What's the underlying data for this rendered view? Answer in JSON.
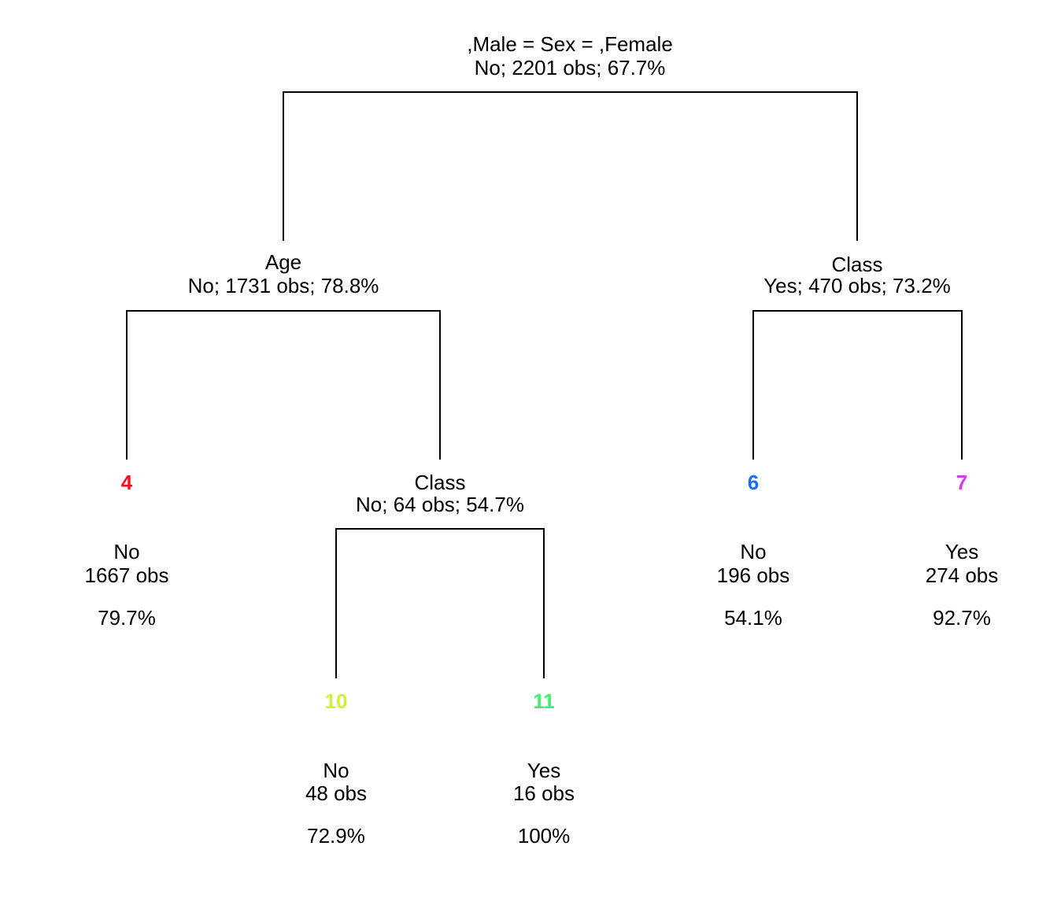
{
  "tree": {
    "internal_nodes": [
      {
        "id": "root",
        "split": ",Male = Sex = ,Female",
        "summary": "No; 2201 obs; 67.7%"
      },
      {
        "id": "n2",
        "split": "Age",
        "summary": "No; 1731 obs; 78.8%"
      },
      {
        "id": "n3",
        "split": "Class",
        "summary": "Yes; 470 obs; 73.2%"
      },
      {
        "id": "n5",
        "split": "Class",
        "summary": "No; 64 obs; 54.7%"
      }
    ],
    "leaves": [
      {
        "id": "leaf4",
        "number": "4",
        "color": "#ff0a1e",
        "class": "No",
        "obs": "1667 obs",
        "pct": "79.7%"
      },
      {
        "id": "leaf6",
        "number": "6",
        "color": "#1a6ef5",
        "class": "No",
        "obs": "196 obs",
        "pct": "54.1%"
      },
      {
        "id": "leaf7",
        "number": "7",
        "color": "#d23cf0",
        "class": "Yes",
        "obs": "274 obs",
        "pct": "92.7%"
      },
      {
        "id": "leaf10",
        "number": "10",
        "color": "#c8f53c",
        "class": "No",
        "obs": "48 obs",
        "pct": "72.9%"
      },
      {
        "id": "leaf11",
        "number": "11",
        "color": "#3cf06e",
        "class": "Yes",
        "obs": "16 obs",
        "pct": "100%"
      }
    ],
    "edges": [
      [
        "root",
        "n2"
      ],
      [
        "root",
        "n3"
      ],
      [
        "n2",
        "leaf4"
      ],
      [
        "n2",
        "n5"
      ],
      [
        "n3",
        "leaf6"
      ],
      [
        "n3",
        "leaf7"
      ],
      [
        "n5",
        "leaf10"
      ],
      [
        "n5",
        "leaf11"
      ]
    ]
  }
}
